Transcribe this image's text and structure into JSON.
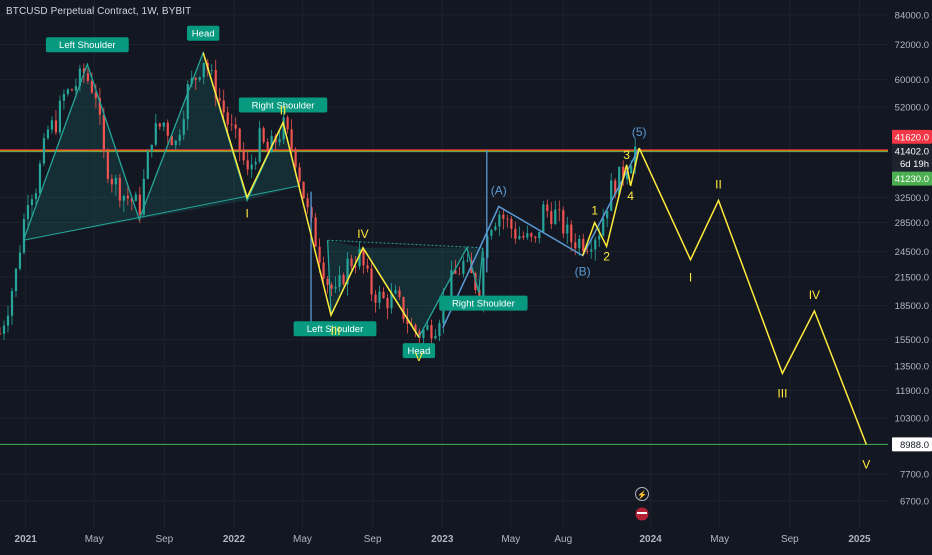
{
  "header": {
    "title": "BTCUSD Perpetual Contract, 1W, BYBIT"
  },
  "colors": {
    "background": "#131722",
    "grid": "#1e222d",
    "text": "#b2b5be",
    "bull": "#26a69a",
    "bear": "#ef5350",
    "wave": "#ffeb3b",
    "corrective": "#5b9bd5",
    "pattern": "#26a69a",
    "pattern_fill": "rgba(38,166,154,0.16)",
    "support": "#4caf50",
    "resistance_red": "#f23645",
    "resistance_orange": "#ff9800"
  },
  "chart_data": {
    "type": "candlestick",
    "symbol": "BTCUSD Perpetual Contract",
    "interval": "1W",
    "exchange": "BYBIT",
    "y_scale": "log",
    "ylim": [
      6000,
      88000
    ],
    "y_ticks": [
      "84000.0",
      "72000.0",
      "60000.0",
      "52000.0",
      "32500.0",
      "28500.0",
      "24500.0",
      "21500.0",
      "18500.0",
      "15500.0",
      "13500.0",
      "11900.0",
      "10300.0",
      "7700.0",
      "6700.0"
    ],
    "x_range": [
      "2020-11-17",
      "2025-02-20"
    ],
    "x_ticks": [
      {
        "label": "2021",
        "date": "2021-01-01"
      },
      {
        "label": "May",
        "date": "2021-05-01"
      },
      {
        "label": "Sep",
        "date": "2021-09-01"
      },
      {
        "label": "2022",
        "date": "2022-01-01"
      },
      {
        "label": "May",
        "date": "2022-05-01"
      },
      {
        "label": "Sep",
        "date": "2022-09-01"
      },
      {
        "label": "2023",
        "date": "2023-01-01"
      },
      {
        "label": "May",
        "date": "2023-05-01"
      },
      {
        "label": "Aug",
        "date": "2023-08-01"
      },
      {
        "label": "2024",
        "date": "2024-01-01"
      },
      {
        "label": "May",
        "date": "2024-05-01"
      },
      {
        "label": "Sep",
        "date": "2024-09-01"
      },
      {
        "label": "2025",
        "date": "2025-01-01"
      }
    ],
    "price_line_path": [
      [
        "2020-11-17",
        16000
      ],
      [
        "2020-12-01",
        18500
      ],
      [
        "2020-12-15",
        22000
      ],
      [
        "2021-01-05",
        33000
      ],
      [
        "2021-01-19",
        34500
      ],
      [
        "2021-02-09",
        46000
      ],
      [
        "2021-02-23",
        48000
      ],
      [
        "2021-03-09",
        55000
      ],
      [
        "2021-03-23",
        57000
      ],
      [
        "2021-04-13",
        62000
      ],
      [
        "2021-05-04",
        56000
      ],
      [
        "2021-05-18",
        40000
      ],
      [
        "2021-06-01",
        36000
      ],
      [
        "2021-06-22",
        33000
      ],
      [
        "2021-07-20",
        31000
      ],
      [
        "2021-08-10",
        45000
      ],
      [
        "2021-08-31",
        48000
      ],
      [
        "2021-09-21",
        43000
      ],
      [
        "2021-10-12",
        57000
      ],
      [
        "2021-10-26",
        61000
      ],
      [
        "2021-11-09",
        67000
      ],
      [
        "2021-11-30",
        57000
      ],
      [
        "2021-12-21",
        48000
      ],
      [
        "2022-01-11",
        42000
      ],
      [
        "2022-01-25",
        36500
      ],
      [
        "2022-02-15",
        44000
      ],
      [
        "2022-03-01",
        41000
      ],
      [
        "2022-03-29",
        47000
      ],
      [
        "2022-04-19",
        40000
      ],
      [
        "2022-05-10",
        30000
      ],
      [
        "2022-06-14",
        21000
      ],
      [
        "2022-06-28",
        19500
      ],
      [
        "2022-07-19",
        23000
      ],
      [
        "2022-08-09",
        24000
      ],
      [
        "2022-08-30",
        20000
      ],
      [
        "2022-09-20",
        19000
      ],
      [
        "2022-10-11",
        19200
      ],
      [
        "2022-11-08",
        16500
      ],
      [
        "2022-11-22",
        16000
      ],
      [
        "2022-12-20",
        16800
      ],
      [
        "2023-01-17",
        21000
      ],
      [
        "2023-02-07",
        23000
      ],
      [
        "2023-03-07",
        20000
      ],
      [
        "2023-03-21",
        28000
      ],
      [
        "2023-04-11",
        30000
      ],
      [
        "2023-05-09",
        27000
      ],
      [
        "2023-06-13",
        25500
      ],
      [
        "2023-06-27",
        30500
      ],
      [
        "2023-07-18",
        29800
      ],
      [
        "2023-08-15",
        26000
      ],
      [
        "2023-09-12",
        25800
      ],
      [
        "2023-10-03",
        27500
      ],
      [
        "2023-10-24",
        34000
      ],
      [
        "2023-11-14",
        37000
      ],
      [
        "2023-12-05",
        42000
      ],
      [
        "2023-12-12",
        41402
      ]
    ],
    "horizontal_levels": [
      {
        "label": "41620.0",
        "price": 41620,
        "color": "#f23645"
      },
      {
        "label": "41402.0",
        "price": 41402,
        "color": "#ff9800"
      },
      {
        "label": "41230.0",
        "price": 41230,
        "color": "#4caf50"
      },
      {
        "label": "8988.0",
        "price": 8988,
        "color": "#4caf50"
      }
    ],
    "countdown": "6d 19h",
    "head_and_shoulders_2021": {
      "labels": [
        "Left Shoulder",
        "Head",
        "Right Shoulder"
      ],
      "points": [
        [
          "2020-12-28",
          26000
        ],
        [
          "2021-04-19",
          65000
        ],
        [
          "2021-07-19",
          29000
        ],
        [
          "2021-11-08",
          69000
        ],
        [
          "2022-01-24",
          32000
        ],
        [
          "2022-03-28",
          48000
        ],
        [
          "2022-04-25",
          34500
        ]
      ]
    },
    "inverse_head_and_shoulders_2022": {
      "labels": [
        "Left Shoulder",
        "Head",
        "Right Shoulder"
      ],
      "points": [
        [
          "2022-06-14",
          26000
        ],
        [
          "2022-06-20",
          17600
        ],
        [
          "2022-08-15",
          25000
        ],
        [
          "2022-11-21",
          15700
        ],
        [
          "2023-02-13",
          25000
        ],
        [
          "2023-03-06",
          19800
        ],
        [
          "2023-03-13",
          25000
        ]
      ]
    },
    "elliott_waves": [
      {
        "name": "bear-2022",
        "color": "#ffeb3b",
        "points": [
          [
            "2021-11-08",
            69000
          ],
          [
            "2022-01-24",
            32500
          ],
          [
            "2022-03-28",
            48000
          ],
          [
            "2022-06-20",
            17600
          ],
          [
            "2022-08-15",
            25000
          ],
          [
            "2022-11-21",
            15700
          ]
        ],
        "labels": [
          "I",
          "II",
          "III",
          "IV",
          "V"
        ]
      },
      {
        "name": "corrective-2023",
        "color": "#5b9bd5",
        "points": [
          [
            "2023-01-02",
            16500
          ],
          [
            "2023-04-10",
            31000
          ],
          [
            "2023-09-04",
            24000
          ],
          [
            "2023-12-12",
            42000
          ]
        ],
        "labels": [
          "(A)",
          "(B)",
          "(5)"
        ]
      },
      {
        "name": "impulse-2023",
        "color": "#ffeb3b",
        "points": [
          [
            "2023-09-04",
            24000
          ],
          [
            "2023-09-25",
            28500
          ],
          [
            "2023-10-16",
            25200
          ],
          [
            "2023-11-20",
            38500
          ],
          [
            "2023-11-27",
            34500
          ],
          [
            "2023-12-12",
            42000
          ]
        ],
        "labels": [
          "1",
          "2",
          "3",
          "4"
        ]
      },
      {
        "name": "projection-2024",
        "color": "#ffeb3b",
        "points": [
          [
            "2023-12-12",
            42000
          ],
          [
            "2024-03-11",
            23500
          ],
          [
            "2024-04-29",
            32000
          ],
          [
            "2024-08-19",
            13000
          ],
          [
            "2024-10-14",
            18000
          ],
          [
            "2025-01-13",
            8988
          ]
        ],
        "labels": [
          "I",
          "II",
          "III",
          "IV",
          "V"
        ]
      }
    ],
    "pattern_labels": [
      "Left Shoulder",
      "Head",
      "Right Shoulder",
      "Left Shoulder",
      "Head",
      "Right Shoulder"
    ],
    "wave_labels": [
      "I",
      "II",
      "III",
      "IV",
      "V",
      "(A)",
      "(B)",
      "(5)",
      "1",
      "2",
      "3",
      "4",
      "I",
      "II",
      "III",
      "IV",
      "V"
    ]
  }
}
